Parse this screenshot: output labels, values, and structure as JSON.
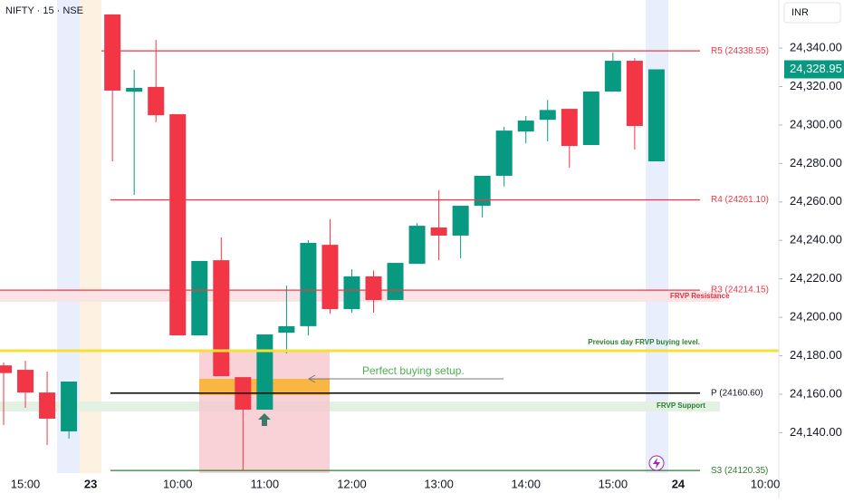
{
  "header": {
    "symbol": "NIFTY · 15 · NSE",
    "currency": "INR"
  },
  "chart_data": {
    "type": "candlestick",
    "categories": [
      null,
      "15:00",
      null,
      null,
      "23",
      null,
      null,
      null,
      "10:00",
      null,
      null,
      null,
      "11:00",
      null,
      null,
      null,
      "12:00",
      null,
      null,
      null,
      "13:00",
      null,
      null,
      null,
      "14:00",
      null,
      null,
      null,
      "15:00",
      null,
      null,
      "24",
      null,
      null,
      null,
      "10:00"
    ],
    "open": [
      24175,
      24172.7,
      24160.9,
      24140.7,
      null,
      24357.5,
      24317.3,
      24319.8,
      24305.6,
      24190.6,
      24229.7,
      24168.9,
      24152,
      24192,
      24195.4,
      24237.7,
      24204.3,
      24221.3,
      24209,
      24227.8,
      24246.7,
      24242.5,
      24258,
      24273.6,
      24296.6,
      24302.7,
      24308.4,
      24289.6,
      24317.4,
      24333.4,
      24281.1,
      null,
      null,
      null,
      null,
      null
    ],
    "high": [
      24176.5,
      24177.4,
      24171.8,
      24166.6,
      null,
      24357.5,
      24328.7,
      24344.3,
      24305.6,
      24229.3,
      24241.5,
      24168.9,
      24191.1,
      24216.5,
      24240.1,
      24251,
      24225,
      24224.3,
      24228.3,
      24249,
      24266,
      24258,
      24273.6,
      24299,
      24304.7,
      24313,
      24308.4,
      24317.4,
      24337.7,
      24334.8,
      24328.95,
      null,
      null,
      null,
      null,
      null
    ],
    "low": [
      24144,
      24152.9,
      24133.6,
      24136.9,
      null,
      24281.1,
      24263.7,
      24301.4,
      24190.6,
      24190.6,
      24169.4,
      24120.4,
      24152,
      24181.2,
      24190.6,
      24201.9,
      24202.4,
      24202.4,
      24209,
      24227.8,
      24229.7,
      24230.7,
      24251.9,
      24268,
      24290.5,
      24291.5,
      24277.8,
      24289.6,
      24317.4,
      24287.2,
      24281.1,
      null,
      null,
      null,
      null,
      null
    ],
    "close": [
      24171,
      24160.9,
      24147.3,
      24166.6,
      null,
      24317.9,
      24319.3,
      24305.1,
      24190.6,
      24229.3,
      24169.4,
      24152,
      24191.1,
      24195.4,
      24238.7,
      24204.3,
      24221.3,
      24209,
      24228.3,
      24247.6,
      24242.5,
      24258,
      24273.6,
      24297.1,
      24302.3,
      24307.8,
      24289.1,
      24317.4,
      24333.4,
      24299.5,
      24328.95,
      null,
      null,
      null,
      null,
      null
    ],
    "up_color": "#089981",
    "down_color": "#f23645",
    "ylim": [
      24119,
      24365
    ],
    "yticks": [
      {
        "value": 24140,
        "label": "24,140.00"
      },
      {
        "value": 24160,
        "label": "24,160.00"
      },
      {
        "value": 24180,
        "label": "24,180.00"
      },
      {
        "value": 24200,
        "label": "24,200.00"
      },
      {
        "value": 24220,
        "label": "24,220.00"
      },
      {
        "value": 24240,
        "label": "24,240.00"
      },
      {
        "value": 24260,
        "label": "24,260.00"
      },
      {
        "value": 24280,
        "label": "24,280.00"
      },
      {
        "value": 24300,
        "label": "24,300.00"
      },
      {
        "value": 24320,
        "label": "24,320.00"
      },
      {
        "value": 24340,
        "label": "24,340.00"
      }
    ],
    "last_price": {
      "value": 24328.95,
      "label": "24,328.95"
    },
    "levels": [
      {
        "label": "R5 (24338.55)",
        "value": 24338.55,
        "color": "#f23645"
      },
      {
        "label": "R4 (24261.10)",
        "value": 24261.1,
        "color": "#f23645"
      },
      {
        "label": "R3 (24214.15)",
        "value": 24214.15,
        "color": "#f23645"
      },
      {
        "label": "Previous day FRVP buying level.",
        "value": 24182.6,
        "color": "#f5e03a"
      },
      {
        "label": "P (24160.60)",
        "value": 24160.6,
        "color": "#000000"
      },
      {
        "label": "S3 (24120.35)",
        "value": 24120.35,
        "color": "#2e7d32"
      }
    ],
    "annotations": [
      "FRVP Resistance",
      "FRVP Support",
      "Perfect buying setup."
    ]
  }
}
